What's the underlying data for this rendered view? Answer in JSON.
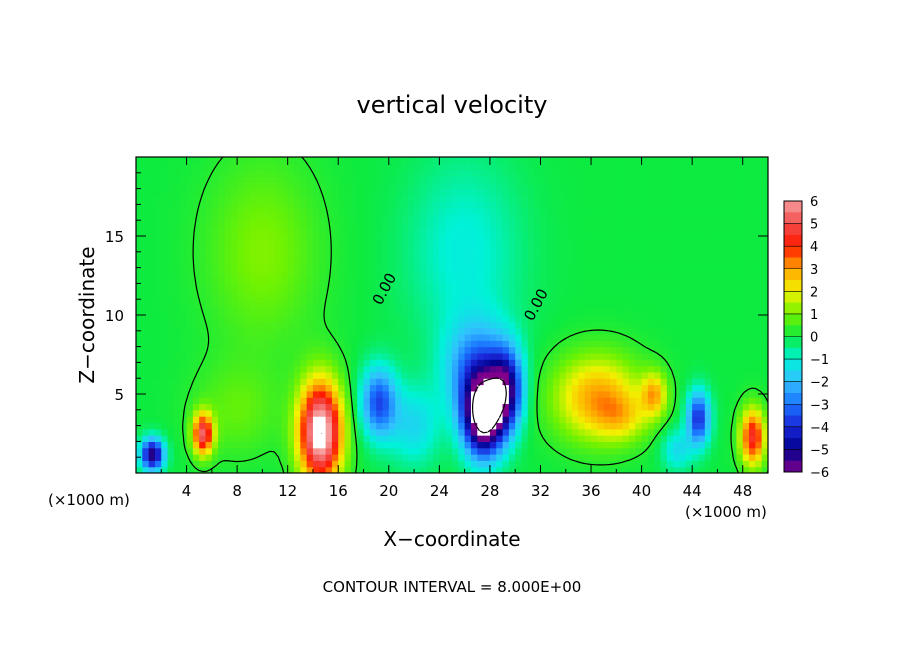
{
  "chart_data": {
    "type": "heatmap",
    "title": "vertical velocity",
    "xlabel": "X−coordinate",
    "ylabel": "Z−coordinate",
    "x_unit_label": "(×1000 m)",
    "y_unit_label": "(×1000 m)",
    "xlim": [
      0,
      50
    ],
    "ylim": [
      0,
      20
    ],
    "x_ticks": [
      "4",
      "8",
      "12",
      "16",
      "20",
      "24",
      "28",
      "32",
      "36",
      "40",
      "44",
      "48"
    ],
    "y_ticks": [
      "5",
      "10",
      "15"
    ],
    "x_tick_values": [
      4,
      8,
      12,
      16,
      20,
      24,
      28,
      32,
      36,
      40,
      44,
      48
    ],
    "y_tick_values": [
      5,
      10,
      15
    ],
    "contour_labels": [
      {
        "text": "0.00",
        "x": 20.0,
        "z": 11.5
      },
      {
        "text": "0.00",
        "x": 32.0,
        "z": 10.5
      }
    ],
    "footer": "CONTOUR INTERVAL = 8.000E+00",
    "colorbar": {
      "labels": [
        "6",
        "5",
        "4",
        "3",
        "2",
        "1",
        "0",
        "−1",
        "−2",
        "−3",
        "−4",
        "−5",
        "−6"
      ],
      "min": -6,
      "max": 6
    },
    "features": [
      {
        "x": 1.3,
        "z": 1.2,
        "amp": -5.5,
        "sx": 0.9,
        "sz": 1.0
      },
      {
        "x": 5.3,
        "z": 2.5,
        "amp": 5.0,
        "sx": 0.8,
        "sz": 1.3
      },
      {
        "x": 14.6,
        "z": 2.6,
        "amp": 7.0,
        "sx": 1.7,
        "sz": 3.2
      },
      {
        "x": 19.2,
        "z": 4.5,
        "amp": -3.5,
        "sx": 1.4,
        "sz": 2.2
      },
      {
        "x": 27.5,
        "z": 3.6,
        "amp": -7.5,
        "sx": 1.6,
        "sz": 2.5
      },
      {
        "x": 29.3,
        "z": 5.3,
        "amp": -4.5,
        "sx": 1.3,
        "sz": 2.5
      },
      {
        "x": 27.0,
        "z": 6.5,
        "amp": -3.0,
        "sx": 2.5,
        "sz": 3.0
      },
      {
        "x": 22.0,
        "z": 3.0,
        "amp": -1.5,
        "sx": 2.0,
        "sz": 2.5
      },
      {
        "x": 36.5,
        "z": 4.8,
        "amp": 3.0,
        "sx": 3.5,
        "sz": 2.7
      },
      {
        "x": 38.5,
        "z": 3.5,
        "amp": 1.2,
        "sx": 2.0,
        "sz": 1.5
      },
      {
        "x": 41.0,
        "z": 5.0,
        "amp": 2.5,
        "sx": 1.0,
        "sz": 1.4
      },
      {
        "x": 44.5,
        "z": 3.5,
        "amp": -4.0,
        "sx": 0.9,
        "sz": 1.7
      },
      {
        "x": 48.8,
        "z": 2.3,
        "amp": 4.5,
        "sx": 1.0,
        "sz": 1.8
      },
      {
        "x": 42.8,
        "z": 1.5,
        "amp": -1.5,
        "sx": 1.2,
        "sz": 1.3
      },
      {
        "x": 10.0,
        "z": 14.0,
        "amp": 1.1,
        "sx": 4.5,
        "sz": 6.0
      },
      {
        "x": 26.0,
        "z": 14.0,
        "amp": -1.1,
        "sx": 4.5,
        "sz": 6.0
      },
      {
        "x": 8.0,
        "z": 4.0,
        "amp": 0.8,
        "sx": 3.5,
        "sz": 3.0
      }
    ]
  }
}
